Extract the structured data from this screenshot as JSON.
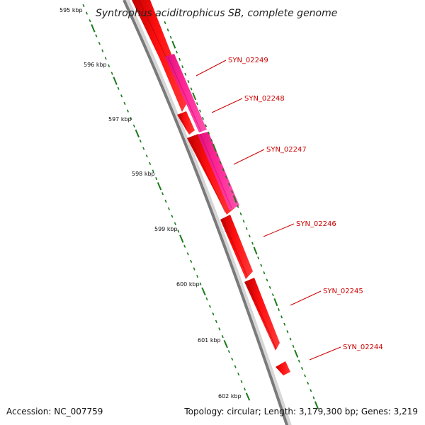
{
  "title": "Syntrophus aciditrophicus SB, complete genome",
  "footer": {
    "accession": "Accession: NC_007759",
    "summary": "Topology: circular; Length: 3,179,300 bp; Genes: 3,219"
  },
  "ticks": [
    "595 kbp",
    "596 kbp",
    "597 kbp",
    "598 kbp",
    "599 kbp",
    "600 kbp",
    "601 kbp",
    "602 kbp"
  ],
  "genes": [
    {
      "id": "SYN_02249",
      "color": "#ff2090"
    },
    {
      "id": "SYN_02248",
      "color": "#ff2090"
    },
    {
      "id": "SYN_02247",
      "color": "#ff2090"
    },
    {
      "id": "SYN_02246",
      "color": "#ff0000"
    },
    {
      "id": "SYN_02245",
      "color": "#ff0000"
    },
    {
      "id": "SYN_02244",
      "color": "#ff0000"
    }
  ],
  "colors": {
    "forward_cds": "#ff2090",
    "reverse_cds": "#ff0000",
    "backbone": "#888888",
    "ticks": "#1a7a1a",
    "labels": "#cc0000"
  }
}
